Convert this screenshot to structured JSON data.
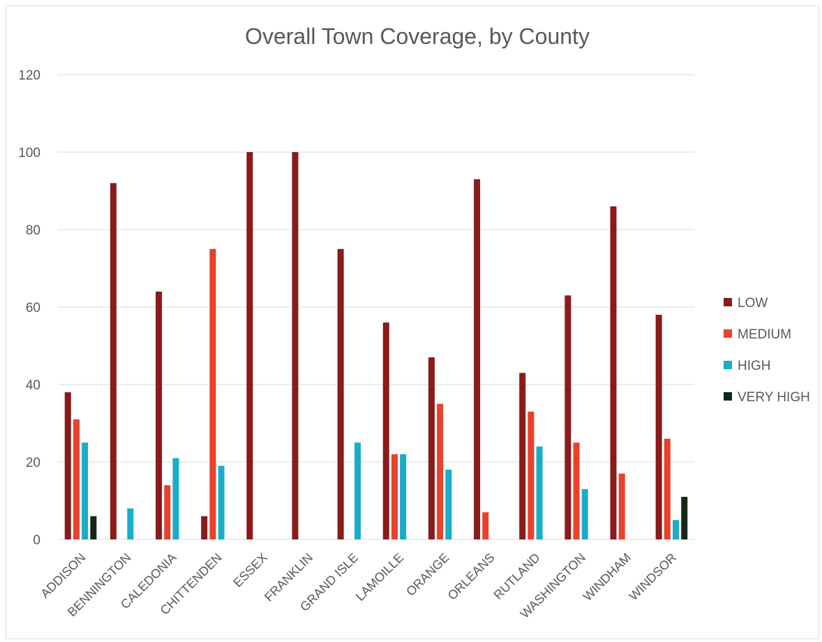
{
  "chart_data": {
    "type": "bar",
    "title": "Overall Town Coverage, by County",
    "xlabel": "",
    "ylabel": "",
    "ylim": [
      0,
      120
    ],
    "yticks": [
      0,
      20,
      40,
      60,
      80,
      100,
      120
    ],
    "grid": true,
    "legend_position": "right",
    "categories": [
      "ADDISON",
      "BENNINGTON",
      "CALEDONIA",
      "CHITTENDEN",
      "ESSEX",
      "FRANKLIN",
      "GRAND ISLE",
      "LAMOILLE",
      "ORANGE",
      "ORLEANS",
      "RUTLAND",
      "WASHINGTON",
      "WINDHAM",
      "WINDSOR"
    ],
    "series": [
      {
        "name": "LOW",
        "color": "#8b1a1a",
        "values": [
          38,
          92,
          64,
          6,
          100,
          100,
          75,
          56,
          47,
          93,
          43,
          63,
          86,
          58
        ]
      },
      {
        "name": "MEDIUM",
        "color": "#e8412c",
        "values": [
          31,
          0,
          14,
          75,
          0,
          0,
          0,
          22,
          35,
          7,
          33,
          25,
          17,
          26
        ]
      },
      {
        "name": "HIGH",
        "color": "#19adc8",
        "values": [
          25,
          8,
          21,
          19,
          0,
          0,
          25,
          22,
          18,
          0,
          24,
          13,
          0,
          5
        ]
      },
      {
        "name": "VERY HIGH",
        "color": "#13291a",
        "values": [
          6,
          0,
          0,
          0,
          0,
          0,
          0,
          0,
          0,
          0,
          0,
          0,
          0,
          11
        ]
      }
    ]
  }
}
